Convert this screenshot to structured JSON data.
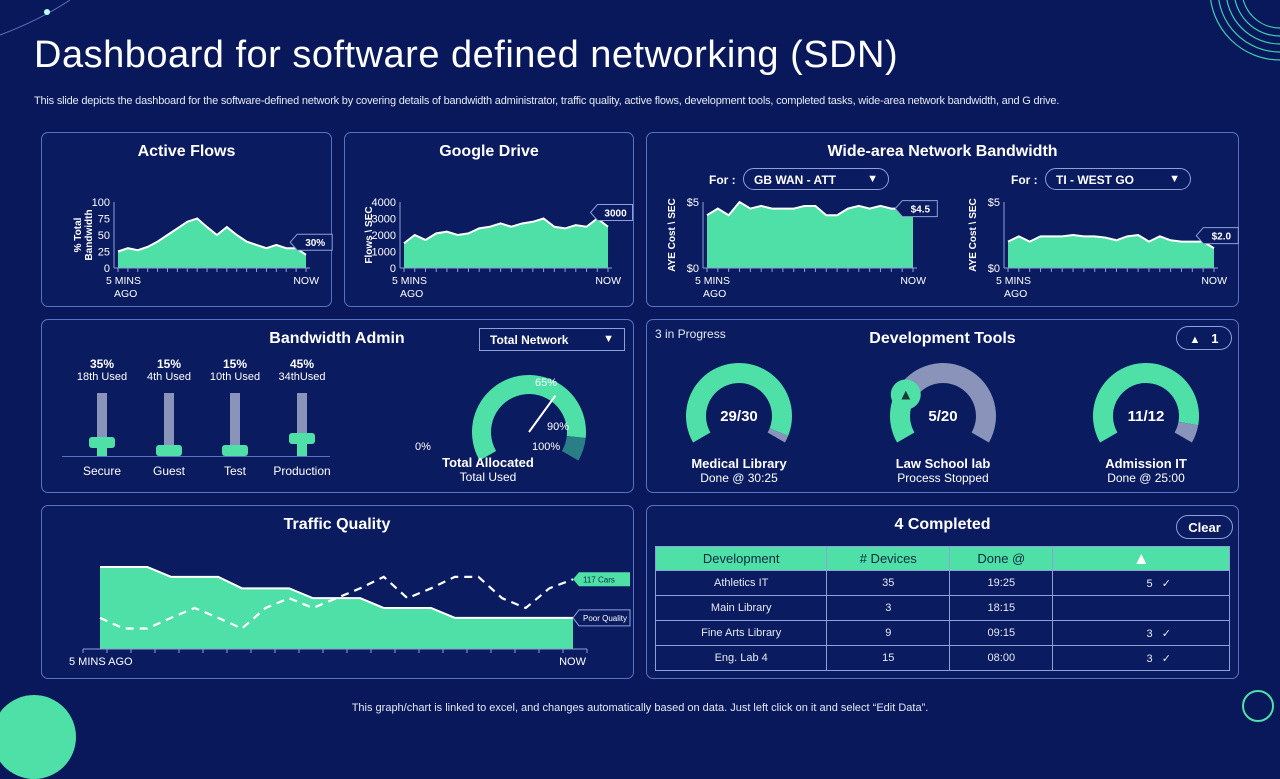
{
  "title": "Dashboard for software defined networking (SDN)",
  "subtitle": "This slide depicts the dashboard for the software-defined network by covering details of bandwidth administrator, traffic quality, active flows, development tools, completed tasks, wide-area network bandwidth, and G drive.",
  "footer": "This graph/chart is linked to excel, and changes automatically based on data. Just left click on it and select “Edit Data”.",
  "colors": {
    "accent": "#4fe0a8",
    "background": "#08185a",
    "muted": "#8a93ba",
    "dark_segment": "#2a7f86"
  },
  "chart_data": [
    {
      "id": "active_flows",
      "type": "area",
      "title": "Active Flows",
      "ylabel": "% Total Bandwidth",
      "ylim": [
        0,
        100
      ],
      "yticks": [
        "100",
        "75",
        "50",
        "25",
        "0"
      ],
      "x_start": "5 MINS AGO",
      "x_end": "NOW",
      "callout": "30%",
      "values": [
        25,
        30,
        27,
        32,
        40,
        50,
        60,
        70,
        75,
        62,
        50,
        62,
        50,
        40,
        35,
        30,
        35,
        30,
        30,
        20
      ]
    },
    {
      "id": "google_drive",
      "type": "area",
      "title": "Google Drive",
      "ylabel": "Flows \\ SEC",
      "ylim": [
        0,
        4000
      ],
      "yticks": [
        "4000",
        "3000",
        "2000",
        "1000",
        "0"
      ],
      "x_start": "5 MINS AGO",
      "x_end": "NOW",
      "callout": "3000",
      "values": [
        1500,
        2000,
        1700,
        2100,
        2200,
        2000,
        2100,
        2400,
        2500,
        2700,
        2500,
        2700,
        2800,
        3000,
        2500,
        2400,
        2600,
        2500,
        3000,
        2500
      ]
    },
    {
      "id": "wan_1",
      "type": "area",
      "ylabel": "AYE Cost \\ SEC",
      "ylim": [
        0,
        5
      ],
      "yticks": [
        "$5",
        "$0"
      ],
      "x_start": "5 MINS AGO",
      "x_end": "NOW",
      "callout": "$4.5",
      "values": [
        4,
        4.5,
        4,
        5,
        4.5,
        4.7,
        4.5,
        4.5,
        4.5,
        4.7,
        4.7,
        4,
        4,
        4.5,
        4.7,
        4.5,
        4.7,
        4.5,
        4.5,
        4
      ]
    },
    {
      "id": "wan_2",
      "type": "area",
      "ylabel": "AYE Cost \\ SEC",
      "ylim": [
        0,
        5
      ],
      "yticks": [
        "$5",
        "$0"
      ],
      "x_start": "5 MINS AGO",
      "x_end": "NOW",
      "callout": "$2.0",
      "values": [
        2,
        2.4,
        2,
        2.4,
        2.4,
        2.4,
        2.5,
        2.4,
        2.4,
        2.3,
        2.1,
        2.4,
        2.5,
        2,
        2.4,
        2.1,
        2,
        2,
        2,
        1.5
      ]
    },
    {
      "id": "traffic_quality",
      "type": "area",
      "title": "Traffic Quality",
      "x_start": "5 MINS AGO",
      "x_end": "NOW",
      "ylim": [
        0,
        100
      ],
      "series": [
        {
          "name": "Poor Quality",
          "style": "step-area",
          "values": [
            100,
            100,
            100,
            88,
            88,
            88,
            74,
            74,
            74,
            62,
            62,
            62,
            50,
            50,
            50,
            38,
            38,
            38,
            38,
            38,
            38
          ]
        },
        {
          "name": "117  Cars",
          "style": "dashed",
          "values": [
            38,
            25,
            25,
            38,
            50,
            38,
            25,
            50,
            62,
            50,
            62,
            74,
            88,
            62,
            74,
            88,
            88,
            62,
            50,
            74,
            85
          ]
        }
      ]
    }
  ],
  "wan": {
    "title": "Wide-area Network Bandwidth",
    "for_label": "For :",
    "select1": "GB WAN - ATT",
    "select2": "TI - WEST GO"
  },
  "bandwidth_admin": {
    "title": "Bandwidth Admin",
    "select": "Total Network",
    "sliders": [
      {
        "name": "Secure",
        "pct": "35%",
        "value": 35,
        "used": "18th Used"
      },
      {
        "name": "Guest",
        "pct": "15%",
        "value": 15,
        "used": "4th Used"
      },
      {
        "name": "Test",
        "pct": "15%",
        "value": 15,
        "used": "10th Used"
      },
      {
        "name": "Production",
        "pct": "45%",
        "value": 45,
        "used": "34thUsed"
      }
    ],
    "gauge": {
      "value": 65,
      "threshold": 90,
      "labels": [
        "0%",
        "65%",
        "90%",
        "100%"
      ],
      "title": "Total Allocated",
      "subtitle": "Total Used"
    }
  },
  "dev_tools": {
    "title": "Development Tools",
    "status": "3 in Progress",
    "alert_count": "1",
    "items": [
      {
        "ratio": "29/30",
        "done": 29,
        "total": 30,
        "name": "Medical Library",
        "sub": "Done @ 30:25",
        "warning": false
      },
      {
        "ratio": "5/20",
        "done": 5,
        "total": 20,
        "name": "Law School lab",
        "sub": "Process Stopped",
        "warning": true
      },
      {
        "ratio": "11/12",
        "done": 11,
        "total": 12,
        "name": "Admission  IT",
        "sub": "Done @ 25:00",
        "warning": false
      }
    ]
  },
  "completed": {
    "title": "4 Completed",
    "clear": "Clear",
    "headers": [
      "Development",
      "# Devices",
      "Done @"
    ],
    "rows": [
      {
        "dev": "Athletics IT",
        "devices": "35",
        "done": "19:25",
        "alerts": "5",
        "check": true
      },
      {
        "dev": "Main Library",
        "devices": "3",
        "done": "18:15",
        "alerts": "",
        "check": false
      },
      {
        "dev": "Fine Arts Library",
        "devices": "9",
        "done": "09:15",
        "alerts": "3",
        "check": true
      },
      {
        "dev": "Eng. Lab 4",
        "devices": "15",
        "done": "08:00",
        "alerts": "3",
        "check": true
      }
    ]
  }
}
